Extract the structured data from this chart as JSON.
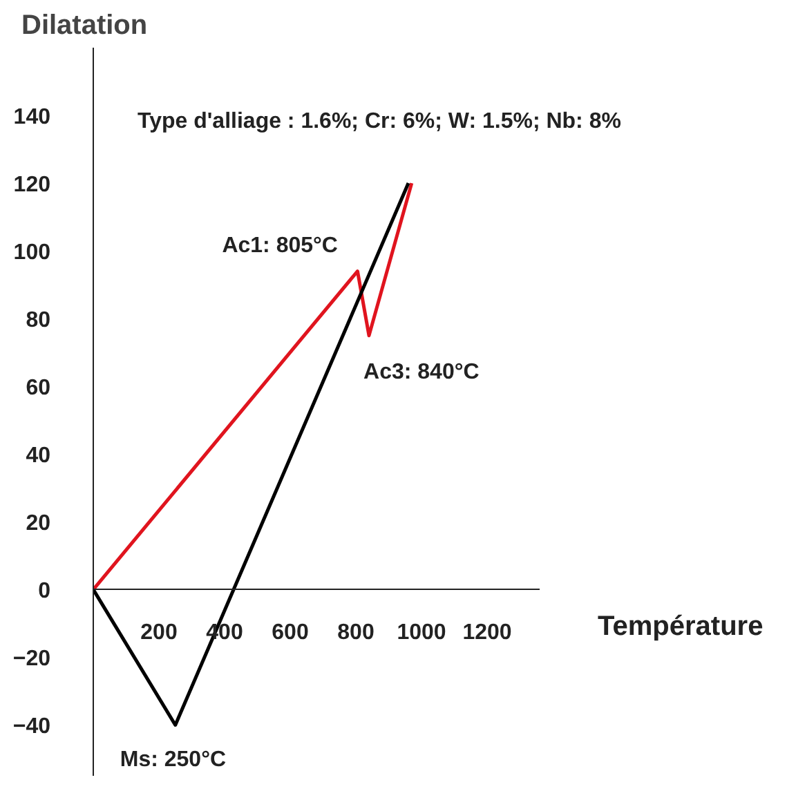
{
  "chart_data": {
    "type": "line",
    "title": "Type d'alliage : 1.6%; Cr: 6%; W: 1.5%; Nb: 8%",
    "xlabel": "Température",
    "ylabel": "Dilatation",
    "series": [
      {
        "color": "#e0141e",
        "x": [
          0,
          805,
          840,
          970
        ],
        "values": [
          0,
          94,
          75,
          120
        ]
      },
      {
        "color": "#000000",
        "x": [
          0,
          250,
          960
        ],
        "values": [
          0,
          -40,
          120
        ]
      }
    ],
    "annotations": [
      {
        "text": "Ac1: 805°C",
        "x": 805,
        "y": 94
      },
      {
        "text": "Ac3: 840°C",
        "x": 840,
        "y": 75
      },
      {
        "text": "Ms: 250°C",
        "x": 250,
        "y": -40
      }
    ],
    "xlim": [
      0,
      1360
    ],
    "ylim": [
      -55,
      160
    ],
    "xticks": [
      200,
      400,
      600,
      800,
      1000,
      1200
    ],
    "yticks": [
      -40,
      -20,
      0,
      20,
      40,
      60,
      80,
      100,
      120,
      140
    ],
    "marker": "none",
    "line_style": "solid"
  }
}
